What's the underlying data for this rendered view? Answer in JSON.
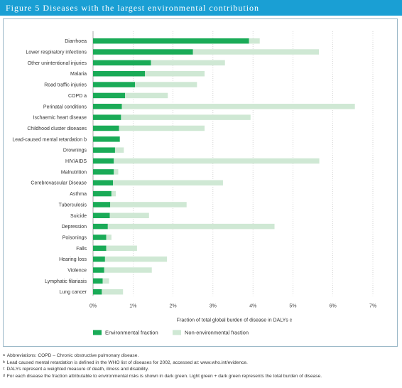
{
  "header": {
    "title": "Figure 5 Diseases with the largest environmental contribution"
  },
  "colors": {
    "env": "#1aab57",
    "nonenv": "#cfe8d4",
    "header_bg": "#1a9fd4"
  },
  "chart_data": {
    "type": "bar",
    "orientation": "horizontal",
    "stacked": true,
    "categories": [
      "Diarrhoea",
      "Lower respiratory infections",
      "Other unintentional injuries",
      "Malaria",
      "Road traffic injuries",
      "COPD a",
      "Perinatal conditions",
      "Ischaemic heart disease",
      "Childhood cluster diseases",
      "Lead-caused mental retardation b",
      "Drownings",
      "HIV/AIDS",
      "Malnutrition",
      "Cerebrovascular Disease",
      "Asthma",
      "Tuberculosis",
      "Suicide",
      "Depression",
      "Poisonings",
      "Falls",
      "Hearing loss",
      "Violence",
      "Lymphatic filariasis",
      "Lung cancer"
    ],
    "series": [
      {
        "name": "Environmental fraction",
        "values": [
          3.9,
          2.5,
          1.45,
          1.3,
          1.05,
          0.8,
          0.72,
          0.7,
          0.65,
          0.67,
          0.55,
          0.52,
          0.52,
          0.5,
          0.46,
          0.43,
          0.42,
          0.37,
          0.33,
          0.33,
          0.3,
          0.28,
          0.24,
          0.22
        ]
      },
      {
        "name": "Non-environmental fraction",
        "values": [
          0.27,
          3.15,
          1.85,
          1.49,
          1.55,
          1.07,
          5.83,
          3.24,
          2.14,
          0.0,
          0.22,
          5.14,
          0.11,
          2.75,
          0.11,
          1.91,
          0.98,
          4.17,
          0.13,
          0.77,
          1.55,
          1.19,
          0.16,
          0.53
        ]
      }
    ],
    "xticks": [
      "0%",
      "1%",
      "2%",
      "3%",
      "4%",
      "5%",
      "6%",
      "7%"
    ],
    "xlim": [
      0,
      7
    ],
    "xlabel": "Fraction of total global burden of disease in DALYs c",
    "legend_position": "bottom"
  },
  "footnotes": [
    {
      "mark": "a",
      "text": "Abbreviations: COPD – Chronic obstructive pulmonary disease."
    },
    {
      "mark": "b",
      "text": "Lead caused mental retardation is defined in the WHO list of diseases for 2002, accessed at: www.who.int/evidence."
    },
    {
      "mark": "c",
      "text": "DALYs represent a weighted measure of death, illness and disability."
    },
    {
      "mark": "d",
      "text": "For each disease the fraction attributable to environmental risks is shown in dark green. Light green + dark green represents the total burden of disease."
    }
  ]
}
